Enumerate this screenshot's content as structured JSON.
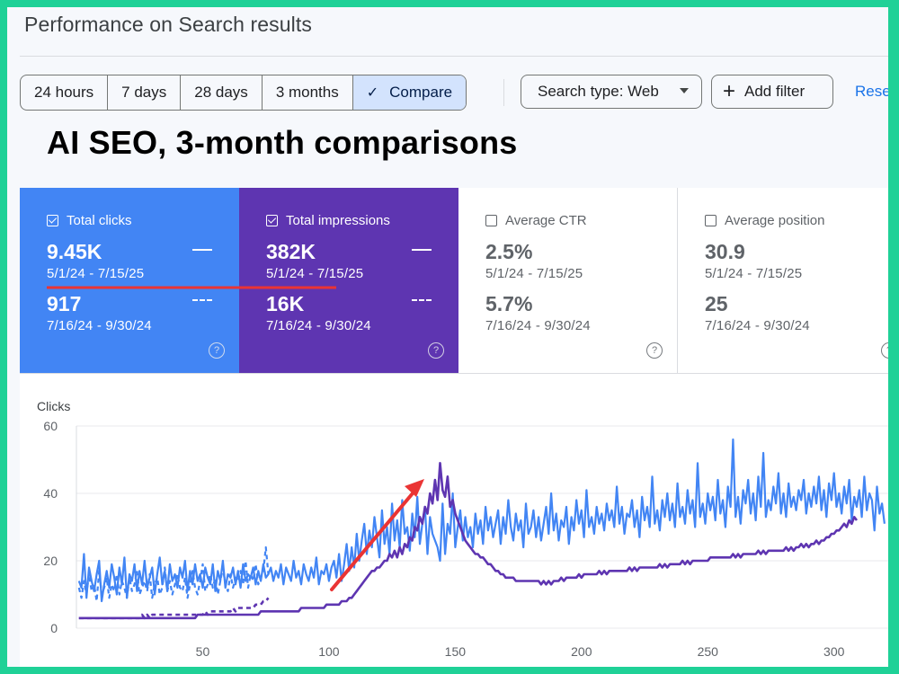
{
  "page_title": "Performance on Search results",
  "date_range": {
    "options": [
      "24 hours",
      "7 days",
      "28 days",
      "3 months",
      "Compare"
    ],
    "selected": "Compare"
  },
  "filters": {
    "search_type": "Search type: Web",
    "add_filter": "Add filter",
    "reset": "Rese"
  },
  "headline": "AI SEO, 3-month comparisons",
  "metrics": [
    {
      "label": "Total clicks",
      "checked": true,
      "current": "9.45K",
      "current_range": "5/1/24 - 7/15/25",
      "previous": "917",
      "previous_range": "7/16/24 - 9/30/24",
      "color": "#4285f4"
    },
    {
      "label": "Total impressions",
      "checked": true,
      "current": "382K",
      "current_range": "5/1/24 - 7/15/25",
      "previous": "16K",
      "previous_range": "7/16/24 - 9/30/24",
      "color": "#5e35b1"
    },
    {
      "label": "Average CTR",
      "checked": false,
      "current": "2.5%",
      "current_range": "5/1/24 - 7/15/25",
      "previous": "5.7%",
      "previous_range": "7/16/24 - 9/30/24"
    },
    {
      "label": "Average position",
      "checked": false,
      "current": "30.9",
      "current_range": "5/1/24 - 7/15/25",
      "previous": "25",
      "previous_range": "7/16/24 - 9/30/24"
    }
  ],
  "help_glyph": "?",
  "colors": {
    "annotation_red": "#ea3434",
    "clicks_blue": "#4285f4",
    "impressions_purple": "#5e35b1"
  },
  "chart_data": {
    "type": "line",
    "ylabel": "Clicks",
    "xlim": [
      0,
      330
    ],
    "ylim": [
      0,
      60
    ],
    "y_ticks": [
      0,
      20,
      40,
      60
    ],
    "x_ticks": [
      50,
      100,
      150,
      200,
      250,
      300
    ],
    "grid": true,
    "series": [
      {
        "color": "#4285f4",
        "style": "solid",
        "values": [
          14,
          12,
          22,
          9,
          18,
          14,
          11,
          16,
          20,
          8,
          13,
          17,
          12,
          19,
          15,
          10,
          18,
          13,
          21,
          9,
          16,
          14,
          19,
          11,
          17,
          13,
          20,
          12,
          15,
          18,
          10,
          16,
          21,
          13,
          17,
          11,
          19,
          14,
          16,
          12,
          18,
          15,
          20,
          11,
          17,
          13,
          19,
          14,
          16,
          12,
          18,
          15,
          13,
          19,
          11,
          17,
          14,
          20,
          12,
          16,
          15,
          18,
          13,
          17,
          12,
          19,
          14,
          16,
          15,
          18,
          13,
          17,
          14,
          19,
          15,
          16,
          18,
          14,
          17,
          15,
          19,
          13,
          18,
          16,
          14,
          20,
          15,
          17,
          13,
          19,
          16,
          14,
          18,
          15,
          21,
          13,
          17,
          16,
          19,
          14,
          18,
          20,
          15,
          22,
          14,
          19,
          25,
          17,
          24,
          18,
          28,
          20,
          26,
          31,
          22,
          29,
          24,
          33,
          27,
          21,
          35,
          25,
          30,
          22,
          37,
          26,
          32,
          24,
          38,
          28,
          30,
          23,
          34,
          27,
          39,
          25,
          31,
          36,
          22,
          33,
          28,
          26,
          24,
          20,
          37,
          22,
          31,
          28,
          40,
          24,
          30,
          35,
          26,
          33,
          27,
          30,
          24,
          34,
          28,
          32,
          25,
          36,
          29,
          33,
          27,
          31,
          35,
          25,
          33,
          28,
          38,
          30,
          26,
          34,
          29,
          32,
          24,
          37,
          28,
          30,
          35,
          27,
          33,
          26,
          31,
          36,
          28,
          40,
          29,
          34,
          26,
          32,
          30,
          36,
          25,
          33,
          29,
          38,
          31,
          35,
          27,
          41,
          30,
          33,
          28,
          36,
          31,
          34,
          29,
          37,
          32,
          35,
          30,
          42,
          31,
          36,
          28,
          34,
          33,
          38,
          30,
          35,
          27,
          39,
          32,
          36,
          30,
          45,
          31,
          35,
          29,
          38,
          33,
          40,
          32,
          37,
          30,
          43,
          33,
          36,
          31,
          41,
          34,
          38,
          30,
          49,
          33,
          37,
          31,
          40,
          35,
          39,
          32,
          44,
          34,
          38,
          30,
          42,
          36,
          56,
          33,
          39,
          31,
          41,
          37,
          44,
          34,
          40,
          32,
          45,
          36,
          52,
          33,
          38,
          35,
          42,
          37,
          46,
          34,
          40,
          33,
          43,
          36,
          39,
          35,
          41,
          38,
          44,
          34,
          40,
          36,
          42,
          37,
          45,
          35,
          41,
          33,
          43,
          38,
          46,
          36,
          40,
          34,
          42,
          37,
          44,
          32,
          39,
          36,
          41,
          33,
          45,
          35,
          40,
          38,
          29,
          42,
          34,
          37,
          31
        ],
        "x_start": 1
      },
      {
        "color": "#5e35b1",
        "style": "solid",
        "values": [
          3,
          3,
          3,
          3,
          3,
          3,
          3,
          3,
          3,
          3,
          3,
          3,
          3,
          3,
          3,
          3,
          3,
          3,
          3,
          3,
          3,
          3,
          3,
          3,
          3,
          3,
          3,
          3,
          3,
          3,
          3,
          3,
          3,
          3,
          3,
          3,
          3,
          3,
          3,
          3,
          3,
          3,
          3,
          3,
          3,
          3,
          3,
          4,
          4,
          4,
          4,
          4,
          4,
          4,
          4,
          4,
          4,
          4,
          4,
          4,
          4,
          4,
          4,
          4,
          4,
          4,
          4,
          4,
          4,
          4,
          4,
          4,
          5,
          5,
          5,
          5,
          5,
          5,
          5,
          5,
          5,
          5,
          5,
          5,
          5,
          5,
          5,
          5,
          6,
          6,
          6,
          6,
          6,
          6,
          6,
          6,
          6,
          6,
          7,
          7,
          7,
          7,
          7,
          7,
          8,
          8,
          8,
          9,
          9,
          10,
          11,
          12,
          13,
          14,
          15,
          16,
          17,
          17,
          18,
          18,
          19,
          20,
          20,
          22,
          21,
          23,
          21,
          24,
          22,
          25,
          24,
          27,
          26,
          30,
          29,
          33,
          31,
          36,
          34,
          40,
          37,
          44,
          38,
          49,
          41,
          39,
          45,
          36,
          38,
          34,
          32,
          30,
          28,
          26,
          25,
          24,
          23,
          22,
          22,
          21,
          21,
          20,
          19,
          19,
          18,
          17,
          17,
          16,
          16,
          15,
          15,
          15,
          15,
          14,
          14,
          14,
          14,
          14,
          14,
          14,
          14,
          14,
          14,
          13,
          14,
          13,
          14,
          13,
          14,
          14,
          14,
          15,
          14,
          15,
          15,
          15,
          15,
          15,
          16,
          15,
          16,
          16,
          16,
          16,
          16,
          16,
          17,
          16,
          17,
          16,
          17,
          17,
          17,
          17,
          17,
          17,
          17,
          17,
          18,
          17,
          18,
          17,
          18,
          18,
          18,
          18,
          18,
          18,
          18,
          18,
          19,
          18,
          19,
          18,
          19,
          19,
          19,
          19,
          19,
          20,
          19,
          20,
          19,
          20,
          20,
          20,
          20,
          20,
          20,
          20,
          21,
          21,
          21,
          21,
          21,
          21,
          21,
          21,
          21,
          22,
          21,
          22,
          21,
          22,
          22,
          22,
          22,
          22,
          22,
          23,
          22,
          23,
          22,
          23,
          23,
          23,
          23,
          23,
          23,
          23,
          24,
          23,
          24,
          23,
          24,
          24,
          25,
          24,
          25,
          24,
          25,
          25,
          26,
          25,
          26,
          26,
          27,
          27,
          28,
          28,
          29,
          29,
          30,
          31,
          30,
          32,
          31,
          33,
          32
        ],
        "x_start": 1
      },
      {
        "color": "#4285f4",
        "style": "dashed",
        "values": [
          12,
          9,
          14,
          10,
          16,
          11,
          13,
          8,
          17,
          10,
          12,
          15,
          9,
          13,
          11,
          16,
          10,
          14,
          12,
          9,
          15,
          11,
          13,
          17,
          10,
          12,
          14,
          11,
          16,
          9,
          13,
          15,
          10,
          12,
          18,
          11,
          14,
          10,
          13,
          16,
          12,
          11,
          15,
          9,
          13,
          17,
          12,
          10,
          14,
          19,
          11,
          13,
          16,
          12,
          15,
          10,
          14,
          18,
          13,
          11,
          16,
          12,
          15,
          14,
          17,
          13,
          20,
          12,
          16,
          14,
          19,
          13,
          15,
          17,
          24,
          16
        ],
        "x_start": 1
      },
      {
        "color": "#5e35b1",
        "style": "dashed",
        "values": [
          3,
          3,
          3,
          3,
          3,
          3,
          3,
          3,
          3,
          3,
          3,
          3,
          3,
          3,
          3,
          3,
          3,
          3,
          3,
          3,
          3,
          3,
          3,
          3,
          3,
          4,
          3,
          4,
          3,
          4,
          4,
          4,
          4,
          4,
          4,
          4,
          4,
          4,
          4,
          4,
          4,
          4,
          4,
          4,
          4,
          4,
          4,
          4,
          4,
          4,
          5,
          4,
          5,
          5,
          5,
          5,
          5,
          5,
          5,
          5,
          5,
          6,
          5,
          6,
          6,
          6,
          6,
          6,
          6,
          6,
          7,
          7,
          7,
          8,
          8,
          9
        ],
        "x_start": 1
      }
    ]
  }
}
